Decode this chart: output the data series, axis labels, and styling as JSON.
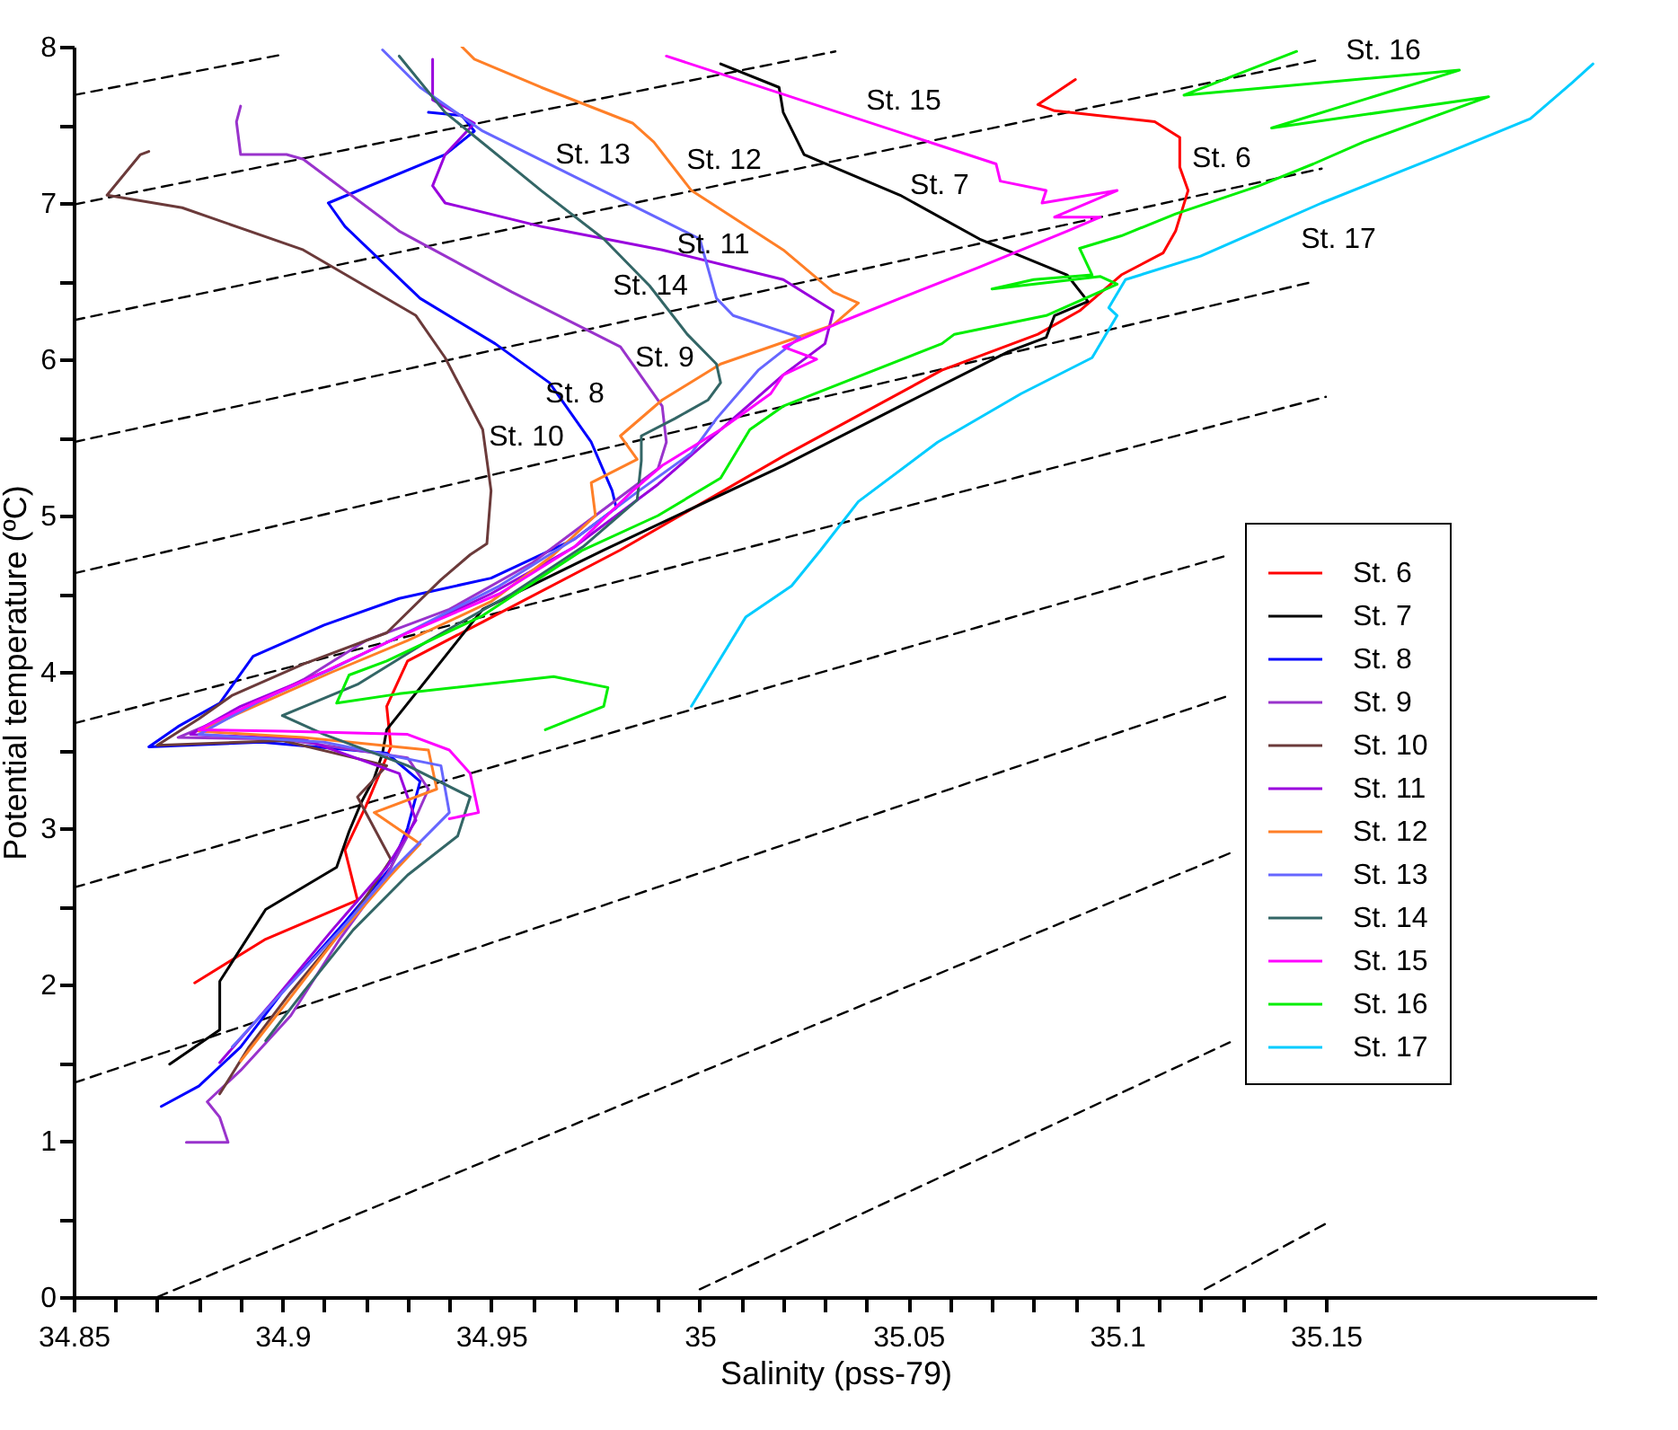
{
  "chart_data": {
    "type": "line",
    "xlabel": "Salinity (pss-79)",
    "ylabel": "Potential temperature (ºC)",
    "xlim": [
      34.85,
      35.215
    ],
    "ylim": [
      0,
      8
    ],
    "xticks": [
      34.85,
      {
        "value": 34.86,
        "label": null
      },
      {
        "value": 34.87,
        "label": null
      },
      {
        "value": 34.88,
        "label": null
      },
      {
        "value": 34.89,
        "label": null
      },
      34.9,
      {
        "value": 34.91,
        "label": null
      },
      {
        "value": 34.92,
        "label": null
      },
      {
        "value": 34.93,
        "label": null
      },
      {
        "value": 34.94,
        "label": null
      },
      34.95,
      {
        "value": 34.96,
        "label": null
      },
      {
        "value": 34.97,
        "label": null
      },
      {
        "value": 34.98,
        "label": null
      },
      {
        "value": 34.99,
        "label": null
      },
      35,
      {
        "value": 35.01,
        "label": null
      },
      {
        "value": 35.02,
        "label": null
      },
      {
        "value": 35.03,
        "label": null
      },
      {
        "value": 35.04,
        "label": null
      },
      35.05,
      {
        "value": 35.06,
        "label": null
      },
      {
        "value": 35.07,
        "label": null
      },
      {
        "value": 35.08,
        "label": null
      },
      {
        "value": 35.09,
        "label": null
      },
      35.1,
      {
        "value": 35.11,
        "label": null
      },
      {
        "value": 35.12,
        "label": null
      },
      {
        "value": 35.13,
        "label": null
      },
      {
        "value": 35.14,
        "label": null
      },
      35.15
    ],
    "yticks": [
      0,
      {
        "value": 0.5,
        "label": null
      },
      1,
      {
        "value": 1.5,
        "label": null
      },
      2,
      {
        "value": 2.5,
        "label": null
      },
      3,
      {
        "value": 3.5,
        "label": null
      },
      4,
      {
        "value": 4.5,
        "label": null
      },
      5,
      {
        "value": 5.5,
        "label": null
      },
      6,
      {
        "value": 6.5,
        "label": null
      },
      7,
      {
        "value": 7.5,
        "label": null
      },
      8
    ],
    "grid": false,
    "legend": "right",
    "line_style": "solid",
    "marker": "none",
    "annotations": [
      "St. 6",
      "St. 7",
      "St. 8",
      "St. 9",
      "St. 10",
      "St. 11",
      "St. 12",
      "St. 13",
      "St. 14",
      "St. 15",
      "St. 16",
      "St. 17"
    ],
    "series": [
      {
        "type": "line",
        "line_style": "dashed",
        "color": "#000000",
        "x": [
          34.85,
          34.9
        ],
        "values": [
          7.69,
          7.95
        ]
      },
      {
        "type": "line",
        "line_style": "dashed",
        "color": "#000000",
        "x": [
          34.85,
          35.0325
        ],
        "values": [
          6.99,
          7.97
        ]
      },
      {
        "type": "line",
        "line_style": "dashed",
        "color": "#000000",
        "x": [
          34.85,
          35.149
        ],
        "values": [
          6.25,
          7.92
        ]
      },
      {
        "type": "line",
        "line_style": "dashed",
        "color": "#000000",
        "x": [
          34.85,
          35.149
        ],
        "values": [
          5.47,
          7.22
        ]
      },
      {
        "type": "line",
        "line_style": "dashed",
        "color": "#000000",
        "x": [
          34.85,
          35.146
        ],
        "values": [
          4.63,
          6.49
        ]
      },
      {
        "type": "line",
        "line_style": "dashed",
        "color": "#000000",
        "x": [
          34.85,
          35.15
        ],
        "values": [
          3.67,
          5.76
        ]
      },
      {
        "type": "line",
        "line_style": "dashed",
        "color": "#000000",
        "x": [
          34.85,
          35.127
        ],
        "values": [
          2.62,
          4.75
        ]
      },
      {
        "type": "line",
        "line_style": "dashed",
        "color": "#000000",
        "x": [
          34.85,
          35.127
        ],
        "values": [
          1.37,
          3.85
        ]
      },
      {
        "type": "line",
        "line_style": "dashed",
        "color": "#000000",
        "x": [
          34.87,
          35.127
        ],
        "values": [
          0,
          2.84
        ]
      },
      {
        "type": "line",
        "line_style": "dashed",
        "color": "#000000",
        "x": [
          35.0,
          35.127
        ],
        "values": [
          0.05,
          1.63
        ]
      },
      {
        "type": "line",
        "line_style": "dashed",
        "color": "#000000",
        "x": [
          35.121,
          35.15
        ],
        "values": [
          0.05,
          0.47
        ]
      },
      {
        "name": "St. 6",
        "color": "#ff0000",
        "x": [
          34.879,
          34.896,
          34.918,
          34.915,
          34.92,
          34.926,
          34.925,
          34.93,
          34.948,
          34.981,
          35.02,
          35.058,
          35.081,
          35.091,
          35.101,
          35.111,
          35.114,
          35.117,
          35.115,
          35.115,
          35.109,
          35.085,
          35.081,
          35.09
        ],
        "values": [
          2.01,
          2.29,
          2.54,
          2.86,
          3.14,
          3.52,
          3.78,
          4.07,
          4.32,
          4.78,
          5.38,
          5.93,
          6.16,
          6.31,
          6.54,
          6.68,
          6.82,
          7.08,
          7.23,
          7.42,
          7.52,
          7.59,
          7.63,
          7.79
        ]
      },
      {
        "name": "St. 7",
        "color": "#000000",
        "x": [
          34.873,
          34.885,
          34.885,
          34.896,
          34.913,
          34.916,
          34.919,
          34.922,
          34.924,
          34.925,
          34.948,
          34.977,
          35.02,
          35.048,
          35.074,
          35.083,
          35.085,
          35.093,
          35.088,
          35.067,
          35.048,
          35.025,
          35.02,
          35.019,
          35.005
        ],
        "values": [
          1.49,
          1.71,
          2.02,
          2.48,
          2.75,
          2.98,
          3.17,
          3.32,
          3.48,
          3.63,
          4.4,
          4.78,
          5.32,
          5.7,
          6.05,
          6.14,
          6.28,
          6.37,
          6.54,
          6.77,
          7.05,
          7.31,
          7.58,
          7.74,
          7.89
        ]
      },
      {
        "name": "St. 8",
        "color": "#0000ff",
        "x": [
          34.871,
          34.88,
          34.89,
          34.9,
          34.915,
          34.926,
          34.93,
          34.933,
          34.925,
          34.895,
          34.868,
          34.875,
          34.885,
          34.893,
          34.91,
          34.928,
          34.95,
          34.97,
          34.98,
          34.979,
          34.974,
          34.964,
          34.951,
          34.933,
          34.915,
          34.911,
          34.939,
          34.946,
          34.943,
          34.935
        ],
        "values": [
          1.22,
          1.35,
          1.6,
          1.95,
          2.4,
          2.75,
          3.0,
          3.3,
          3.48,
          3.55,
          3.52,
          3.65,
          3.8,
          4.1,
          4.3,
          4.47,
          4.6,
          4.85,
          5.05,
          5.16,
          5.47,
          5.85,
          6.1,
          6.39,
          6.85,
          7.0,
          7.31,
          7.46,
          7.56,
          7.58
        ]
      },
      {
        "name": "St. 9",
        "color": "#9933cc",
        "x": [
          34.877,
          34.887,
          34.885,
          34.882,
          34.89,
          34.902,
          34.914,
          34.925,
          34.93,
          34.935,
          34.93,
          34.9,
          34.875,
          34.89,
          34.905,
          34.92,
          34.94,
          34.96,
          34.975,
          34.99,
          34.992,
          34.991,
          34.981,
          34.955,
          34.928,
          34.905,
          34.901,
          34.89,
          34.889,
          34.89
        ],
        "values": [
          0.99,
          0.99,
          1.15,
          1.25,
          1.45,
          1.8,
          2.3,
          2.7,
          2.95,
          3.25,
          3.45,
          3.57,
          3.58,
          3.75,
          3.95,
          4.2,
          4.4,
          4.7,
          5.0,
          5.3,
          5.47,
          5.7,
          6.08,
          6.43,
          6.82,
          7.28,
          7.31,
          7.31,
          7.52,
          7.62
        ]
      },
      {
        "name": "St. 10",
        "color": "#6b3a3a",
        "x": [
          34.885,
          34.892,
          34.902,
          34.916,
          34.926,
          34.918,
          34.925,
          34.9,
          34.87,
          34.88,
          34.888,
          34.905,
          34.925,
          34.938,
          34.945,
          34.949,
          34.95,
          34.948,
          34.939,
          34.932,
          34.905,
          34.876,
          34.858,
          34.866,
          34.868
        ],
        "values": [
          1.3,
          1.6,
          1.95,
          2.4,
          2.8,
          3.2,
          3.4,
          3.56,
          3.53,
          3.7,
          3.85,
          4.05,
          4.25,
          4.59,
          4.75,
          4.82,
          5.16,
          5.55,
          6.01,
          6.28,
          6.7,
          6.97,
          7.05,
          7.31,
          7.33
        ]
      },
      {
        "name": "St. 11",
        "color": "#9900dd",
        "x": [
          34.885,
          34.898,
          34.912,
          34.925,
          34.932,
          34.928,
          34.905,
          34.878,
          34.89,
          34.91,
          34.93,
          34.95,
          34.97,
          34.99,
          35.005,
          35.02,
          35.03,
          35.032,
          35.02,
          34.991,
          34.962,
          34.939,
          34.936,
          34.939,
          34.946,
          34.936,
          34.936
        ],
        "values": [
          1.5,
          1.9,
          2.35,
          2.75,
          3.05,
          3.35,
          3.57,
          3.6,
          3.78,
          4.0,
          4.25,
          4.5,
          4.8,
          5.2,
          5.55,
          5.9,
          6.1,
          6.31,
          6.51,
          6.7,
          6.85,
          7.0,
          7.11,
          7.31,
          7.51,
          7.66,
          7.92
        ]
      },
      {
        "name": "St. 12",
        "color": "#ff7f27",
        "x": [
          34.89,
          34.9,
          34.913,
          34.926,
          34.933,
          34.922,
          34.937,
          34.935,
          34.905,
          34.88,
          34.895,
          34.912,
          34.93,
          34.95,
          34.965,
          34.975,
          34.974,
          34.985,
          34.981,
          34.991,
          35.005,
          35.032,
          35.038,
          35.032,
          35.02,
          34.998,
          34.989,
          34.984,
          34.962,
          34.946,
          34.943
        ],
        "values": [
          1.51,
          1.85,
          2.3,
          2.7,
          2.9,
          3.1,
          3.25,
          3.5,
          3.58,
          3.62,
          3.8,
          4.0,
          4.2,
          4.45,
          4.75,
          5.0,
          5.21,
          5.36,
          5.51,
          5.74,
          5.97,
          6.22,
          6.36,
          6.43,
          6.7,
          7.08,
          7.39,
          7.51,
          7.74,
          7.92,
          8.0
        ]
      },
      {
        "name": "St. 13",
        "color": "#6666ff",
        "x": [
          34.888,
          34.9,
          34.914,
          34.927,
          34.94,
          34.938,
          34.91,
          34.88,
          34.895,
          34.912,
          34.932,
          34.952,
          34.97,
          34.985,
          34.998,
          35.004,
          35.014,
          35.024,
          35.008,
          35.004,
          35.0,
          34.991,
          34.948,
          34.933,
          34.924
        ],
        "values": [
          1.6,
          1.95,
          2.35,
          2.75,
          3.1,
          3.4,
          3.55,
          3.6,
          3.82,
          4.02,
          4.28,
          4.55,
          4.85,
          5.15,
          5.4,
          5.62,
          5.93,
          6.14,
          6.28,
          6.39,
          6.77,
          6.89,
          7.46,
          7.74,
          7.98
        ]
      },
      {
        "name": "St. 14",
        "color": "#336666",
        "x": [
          34.896,
          34.905,
          34.917,
          34.93,
          34.942,
          34.945,
          34.93,
          34.91,
          34.9,
          34.918,
          34.935,
          34.955,
          34.972,
          34.985,
          34.986,
          34.986,
          34.994,
          35.002,
          35.005,
          35.004,
          34.997,
          34.988,
          34.977,
          34.962,
          34.939,
          34.928
        ],
        "values": [
          1.64,
          1.95,
          2.35,
          2.7,
          2.95,
          3.2,
          3.4,
          3.6,
          3.72,
          3.92,
          4.2,
          4.5,
          4.8,
          5.1,
          5.35,
          5.51,
          5.62,
          5.74,
          5.85,
          5.97,
          6.16,
          6.47,
          6.77,
          7.08,
          7.58,
          7.94
        ]
      },
      {
        "name": "St. 15",
        "color": "#ff00ff",
        "x": [
          34.94,
          34.947,
          34.945,
          34.94,
          34.93,
          34.9,
          34.88,
          34.893,
          34.91,
          34.93,
          34.952,
          34.97,
          34.984,
          34.991,
          35.005,
          35.017,
          35.02,
          35.028,
          35.02,
          35.034,
          35.048,
          35.067,
          35.088,
          35.096,
          35.085,
          35.1,
          35.082,
          35.083,
          35.072,
          35.071,
          34.992
        ],
        "values": [
          3.06,
          3.1,
          3.35,
          3.5,
          3.6,
          3.62,
          3.63,
          3.8,
          4.0,
          4.25,
          4.5,
          4.8,
          5.16,
          5.32,
          5.55,
          5.78,
          5.9,
          6.0,
          6.08,
          6.24,
          6.39,
          6.59,
          6.82,
          6.91,
          6.91,
          7.08,
          7.0,
          7.08,
          7.14,
          7.25,
          7.94
        ]
      },
      {
        "name": "St. 16",
        "color": "#00ee00",
        "x": [
          34.963,
          34.977,
          34.978,
          34.965,
          34.928,
          34.913,
          34.916,
          34.925,
          34.948,
          34.972,
          34.99,
          35.005,
          35.012,
          35.02,
          35.058,
          35.061,
          35.083,
          35.1,
          35.096,
          35.07,
          35.08,
          35.094,
          35.091,
          35.101,
          35.114,
          35.134,
          35.147,
          35.159,
          35.189,
          35.137,
          35.182,
          35.116,
          35.143
        ],
        "values": [
          3.63,
          3.78,
          3.9,
          3.97,
          3.86,
          3.8,
          3.98,
          4.07,
          4.36,
          4.78,
          5.0,
          5.24,
          5.55,
          5.7,
          6.1,
          6.16,
          6.28,
          6.48,
          6.53,
          6.45,
          6.51,
          6.54,
          6.71,
          6.79,
          6.93,
          7.11,
          7.25,
          7.39,
          7.68,
          7.48,
          7.85,
          7.69,
          7.97
        ]
      },
      {
        "name": "St. 17",
        "color": "#00ccff",
        "x": [
          34.998,
          35.003,
          35.011,
          35.022,
          35.029,
          35.038,
          35.057,
          35.077,
          35.094,
          35.1,
          35.098,
          35.102,
          35.12,
          35.149,
          35.178,
          35.199,
          35.209,
          35.214
        ],
        "values": [
          3.78,
          4.0,
          4.35,
          4.55,
          4.78,
          5.09,
          5.47,
          5.78,
          6.01,
          6.28,
          6.33,
          6.51,
          6.66,
          7.0,
          7.31,
          7.54,
          7.77,
          7.89
        ]
      }
    ]
  }
}
